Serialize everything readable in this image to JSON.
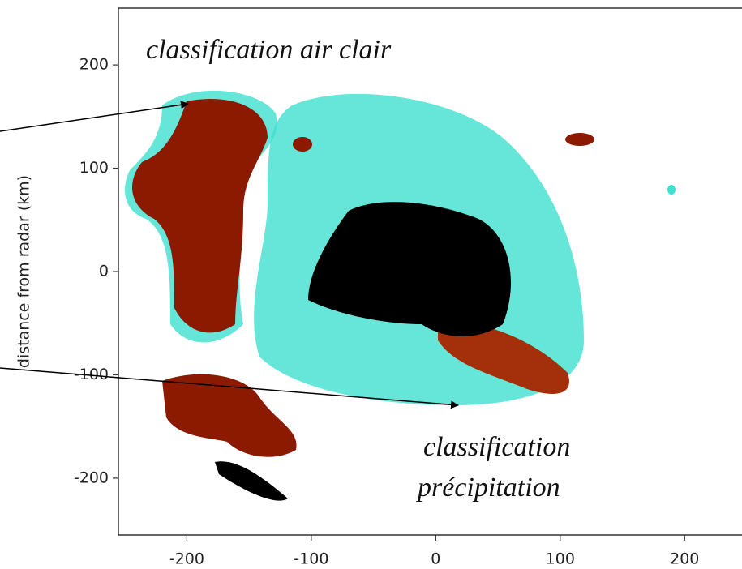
{
  "chart_data": {
    "type": "image",
    "ylabel": "distance from radar (km)",
    "xlim": [
      -255,
      250
    ],
    "ylim": [
      -255,
      255
    ],
    "xticks": [
      -200,
      -100,
      0,
      100,
      200
    ],
    "yticks": [
      -200,
      -100,
      0,
      100,
      200
    ],
    "annotations": [
      "classification air clair",
      [
        "classification",
        "précipitation"
      ]
    ]
  }
}
